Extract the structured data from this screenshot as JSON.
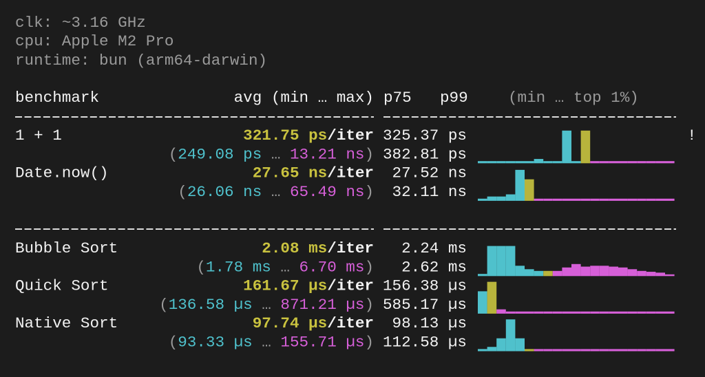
{
  "system": {
    "clock": "clk: ~3.16 GHz",
    "cpu": "cpu: Apple M2 Pro",
    "runtime": "runtime: bun (arm64-darwin)"
  },
  "header": {
    "name": "benchmark",
    "avg": "avg (min … max)",
    "p75": "p75",
    "p99": "p99",
    "histogram": "(min … top 1%)"
  },
  "per_iter": "/iter",
  "range_format": {
    "open": "(",
    "sep": " … ",
    "close": ")"
  },
  "groups": [
    {
      "benchmarks": [
        {
          "name": "1 + 1",
          "avg": "321.75 ps",
          "min": "249.08 ps",
          "max": "13.21 ns",
          "p75": "325.37 ps",
          "p99": "382.81 ps",
          "warning": "!",
          "histogram": [
            {
              "color": "#4fc1cc",
              "values": [
                0.125,
                0.125,
                0.125,
                0.125,
                0.125,
                0.125,
                0.25,
                0.125,
                0.125,
                1.9,
                0.125
              ]
            },
            {
              "color": "#b8b43c",
              "values": [
                1.9
              ]
            },
            {
              "color": "#d65fd8",
              "values": [
                0.125,
                0.125,
                0.125,
                0.125,
                0.125,
                0.125,
                0.125,
                0.125,
                0.125
              ]
            }
          ]
        },
        {
          "name": "Date.now()",
          "avg": "27.65 ns",
          "min": "26.06 ns",
          "max": "65.49 ns",
          "p75": "27.52 ns",
          "p99": "32.11 ns",
          "histogram": [
            {
              "color": "#4fc1cc",
              "values": [
                0.125,
                0.25,
                0.25,
                0.375,
                1.8
              ]
            },
            {
              "color": "#b8b43c",
              "values": [
                1.25
              ]
            },
            {
              "color": "#d65fd8",
              "values": [
                0.125,
                0.125,
                0.125,
                0.125,
                0.125,
                0.125,
                0.125,
                0.125,
                0.125,
                0.125,
                0.125,
                0.125,
                0.125,
                0.125,
                0.125
              ]
            }
          ]
        }
      ]
    },
    {
      "benchmarks": [
        {
          "name": "Bubble Sort",
          "avg": "2.08 ms",
          "min": "1.78 ms",
          "max": "6.70 ms",
          "p75": "2.24 ms",
          "p99": "2.62 ms",
          "histogram": [
            {
              "color": "#4fc1cc",
              "values": [
                0.125,
                1.75,
                1.75,
                1.75,
                0.6,
                0.4,
                0.3
              ]
            },
            {
              "color": "#b8b43c",
              "values": [
                0.3
              ]
            },
            {
              "color": "#d65fd8",
              "values": [
                0.3,
                0.5,
                0.7,
                0.55,
                0.6,
                0.6,
                0.55,
                0.5,
                0.4,
                0.3,
                0.25,
                0.2,
                0.1
              ]
            }
          ]
        },
        {
          "name": "Quick Sort",
          "avg": "161.67 µs",
          "min": "136.58 µs",
          "max": "871.21 µs",
          "p75": "156.38 µs",
          "p99": "585.17 µs",
          "histogram": [
            {
              "color": "#4fc1cc",
              "values": [
                1.3
              ]
            },
            {
              "color": "#b8b43c",
              "values": [
                1.85
              ]
            },
            {
              "color": "#d65fd8",
              "values": [
                0.25,
                0.125,
                0.125,
                0.125,
                0.125,
                0.125,
                0.125,
                0.125,
                0.125,
                0.125,
                0.125,
                0.125,
                0.125,
                0.125,
                0.125,
                0.125,
                0.125,
                0.125,
                0.125
              ]
            }
          ]
        },
        {
          "name": "Native Sort",
          "avg": "97.74 µs",
          "min": "93.33 µs",
          "max": "155.71 µs",
          "p75": "98.13 µs",
          "p99": "112.58 µs",
          "histogram": [
            {
              "color": "#4fc1cc",
              "values": [
                0.125,
                0.25,
                0.75,
                1.85,
                0.75
              ]
            },
            {
              "color": "#b8b43c",
              "values": [
                0.125
              ]
            },
            {
              "color": "#d65fd8",
              "values": [
                0.125,
                0.125,
                0.125,
                0.125,
                0.125,
                0.125,
                0.125,
                0.125,
                0.125,
                0.125,
                0.125,
                0.125,
                0.125,
                0.125,
                0.125
              ]
            }
          ]
        }
      ]
    }
  ]
}
